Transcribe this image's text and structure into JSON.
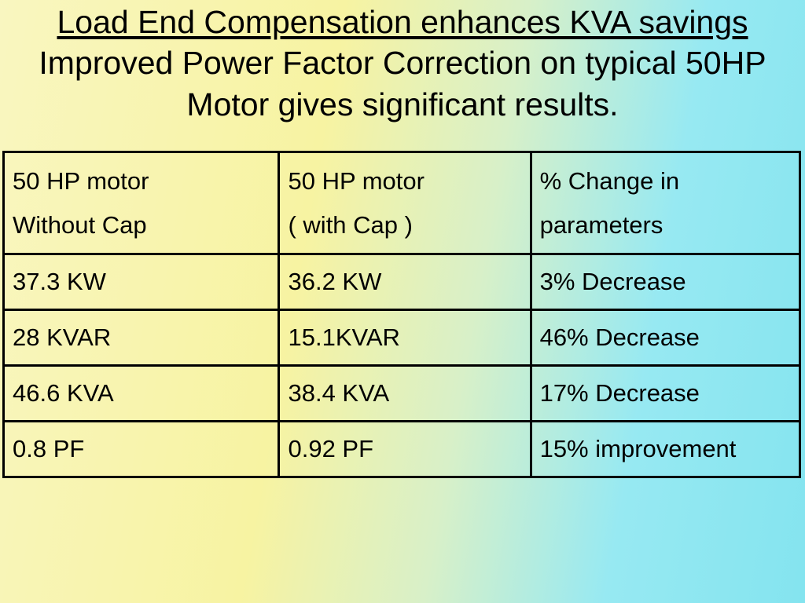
{
  "slide": {
    "title_underlined": "Load End Compensation enhances KVA savings",
    "title_rest": "Improved Power Factor Correction on typical 50HP Motor gives significant results."
  },
  "table": {
    "headers": [
      {
        "line1": "50 HP  motor",
        "line2": "Without Cap"
      },
      {
        "line1": "50 HP motor",
        "line2": "( with Cap )"
      },
      {
        "line1": "% Change in",
        "line2": "parameters"
      }
    ],
    "rows": [
      [
        "37.3 KW",
        "36.2 KW",
        "3% Decrease"
      ],
      [
        "28 KVAR",
        "15.1KVAR",
        "46% Decrease"
      ],
      [
        "46.6 KVA",
        "38.4 KVA",
        "17% Decrease"
      ],
      [
        "0.8 PF",
        "0.92 PF",
        "15% improvement"
      ]
    ]
  },
  "colors": {
    "background_left": "#f7f3a2",
    "background_right": "#84e4ef",
    "text": "#000000",
    "table_border": "#000000"
  }
}
